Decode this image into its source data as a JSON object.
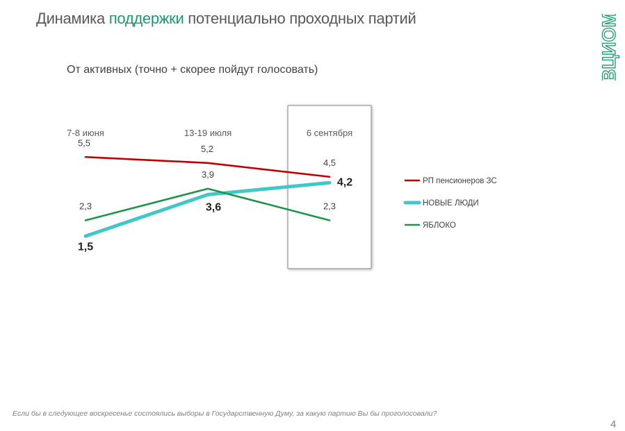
{
  "header": {
    "title_before": "Динамика ",
    "title_highlight": "поддержки",
    "title_after": " потенциально проходных партий"
  },
  "logo": {
    "text": "ВЦИОМ",
    "color": "#1a9970"
  },
  "chart_data": {
    "type": "line",
    "title": "От активных (точно + скорее пойдут голосовать)",
    "categories": [
      "7-8 июня",
      "13-19 июля",
      "6 сентября"
    ],
    "highlighted_category": "6 сентября",
    "ylim": [
      0,
      7
    ],
    "grid": false,
    "legend_position": "right",
    "series": [
      {
        "name": "РП пенсионеров ЗС",
        "values": [
          5.5,
          5.2,
          4.5
        ],
        "labels": [
          "5,5",
          "5,2",
          "4,5"
        ],
        "color": "#c00000",
        "emphasis": false
      },
      {
        "name": "НОВЫЕ ЛЮДИ",
        "values": [
          1.5,
          3.6,
          4.2
        ],
        "labels": [
          "1,5",
          "3,6",
          "4,2"
        ],
        "color": "#40c8c8",
        "emphasis": true
      },
      {
        "name": "ЯБЛОКО",
        "values": [
          2.3,
          3.9,
          2.3
        ],
        "labels": [
          "2,3",
          "3,9",
          "2,3"
        ],
        "color": "#1d9448",
        "emphasis": false
      }
    ]
  },
  "footer": {
    "question": "Если бы в следующее воскресенье состоялись выборы в Государственную Думу, за какую партию Вы бы проголосовали?",
    "page_number": "4"
  }
}
